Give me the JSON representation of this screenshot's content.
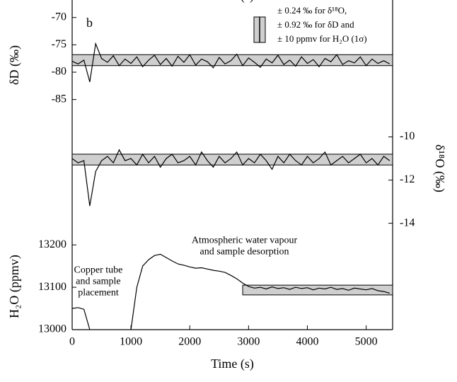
{
  "chart_data": [
    {
      "type": "line",
      "title_top": "Time (s)",
      "panel_label": "b",
      "ylabel": "δD (‰)",
      "yaxis_side": "left",
      "xlim": [
        0,
        5450
      ],
      "ylim": [
        -87.5,
        -66.8
      ],
      "yticks": [
        -70,
        -75,
        -80,
        -85
      ],
      "band": {
        "xlim": [
          0,
          5450
        ],
        "ylim": [
          -78.8,
          -76.8
        ],
        "color": "#cfcfcf"
      },
      "legend_lines": [
        "± 0.24 ‰ for δ¹⁸O,",
        "± 0.92 ‰ for δD and",
        "± 10 ppmv for H₂O (1σ)"
      ],
      "series": [
        {
          "color": "#000000",
          "x": [
            0,
            100,
            200,
            300,
            400,
            500,
            600,
            700,
            800,
            900,
            1000,
            1100,
            1200,
            1300,
            1400,
            1500,
            1600,
            1700,
            1800,
            1900,
            2000,
            2100,
            2200,
            2300,
            2400,
            2500,
            2600,
            2700,
            2800,
            2900,
            3000,
            3100,
            3200,
            3300,
            3400,
            3500,
            3600,
            3700,
            3800,
            3900,
            4000,
            4100,
            4200,
            4300,
            4400,
            4500,
            4600,
            4700,
            4800,
            4900,
            5000,
            5100,
            5200,
            5300,
            5400
          ],
          "values": [
            -78,
            -78.5,
            -77.8,
            -81.8,
            -74.8,
            -77.5,
            -78.2,
            -77,
            -78.8,
            -77.6,
            -78.4,
            -77.2,
            -79,
            -77.8,
            -76.9,
            -78.6,
            -77.5,
            -78.9,
            -77.1,
            -78.2,
            -76.8,
            -78.7,
            -77.6,
            -78.1,
            -79.2,
            -77.3,
            -78.5,
            -77.9,
            -76.7,
            -78.8,
            -77.4,
            -78.2,
            -79.1,
            -77.6,
            -78.3,
            -76.9,
            -78.6,
            -77.8,
            -78.9,
            -77.2,
            -78.4,
            -77.7,
            -79,
            -77.5,
            -78.1,
            -76.8,
            -78.6,
            -77.9,
            -78.3,
            -77.2,
            -78.8,
            -77.6,
            -78.4,
            -77.9,
            -78.5
          ]
        }
      ]
    },
    {
      "type": "line",
      "ylabel": "δ¹⁸O (‰)",
      "yaxis_side": "right",
      "xlim": [
        0,
        5450
      ],
      "ylim": [
        -14.8,
        -8.9
      ],
      "yticks": [
        -10,
        -12,
        -14
      ],
      "band": {
        "xlim": [
          0,
          5450
        ],
        "ylim": [
          -11.3,
          -10.8
        ],
        "color": "#cfcfcf"
      },
      "series": [
        {
          "color": "#000000",
          "x": [
            0,
            100,
            200,
            300,
            400,
            500,
            600,
            700,
            800,
            900,
            1000,
            1100,
            1200,
            1300,
            1400,
            1500,
            1600,
            1700,
            1800,
            1900,
            2000,
            2100,
            2200,
            2300,
            2400,
            2500,
            2600,
            2700,
            2800,
            2900,
            3000,
            3100,
            3200,
            3300,
            3400,
            3500,
            3600,
            3700,
            3800,
            3900,
            4000,
            4100,
            4200,
            4300,
            4400,
            4500,
            4600,
            4700,
            4800,
            4900,
            5000,
            5100,
            5200,
            5300,
            5400
          ],
          "values": [
            -11,
            -11.2,
            -11.1,
            -13.2,
            -11.6,
            -11.1,
            -10.9,
            -11.2,
            -10.6,
            -11.1,
            -11,
            -11.3,
            -10.8,
            -11.2,
            -10.9,
            -11.4,
            -11,
            -10.8,
            -11.2,
            -11.1,
            -10.9,
            -11.3,
            -10.7,
            -11.1,
            -11.4,
            -10.9,
            -11.2,
            -11,
            -10.7,
            -11.3,
            -11,
            -11.2,
            -10.8,
            -11.1,
            -11.5,
            -10.9,
            -11.2,
            -10.8,
            -11.1,
            -11.3,
            -10.9,
            -11.2,
            -11,
            -10.7,
            -11.3,
            -11.1,
            -10.9,
            -11.2,
            -11,
            -10.8,
            -11.2,
            -11,
            -11.3,
            -10.9,
            -11.1
          ]
        }
      ]
    },
    {
      "type": "line",
      "ylabel": "H₂O (ppmv)",
      "xlabel": "Time (s)",
      "yaxis_side": "left",
      "xlim": [
        0,
        5450
      ],
      "xticks": [
        0,
        1000,
        2000,
        3000,
        4000,
        5000
      ],
      "ylim": [
        13000,
        13227
      ],
      "yticks": [
        13200,
        13100,
        13000
      ],
      "band": {
        "xlim": [
          2900,
          5450
        ],
        "ylim": [
          13082,
          13105
        ],
        "color": "#cfcfcf"
      },
      "annotations": [
        {
          "lines": [
            "Copper tube",
            "and sample",
            "placement"
          ],
          "x": 950,
          "y": 13140
        },
        {
          "lines": [
            "Atmospheric water vapour",
            "and sample desorption"
          ],
          "x": 2930,
          "y": 13210
        }
      ],
      "series": [
        {
          "color": "#000000",
          "x": [
            0,
            100,
            200,
            300,
            400,
            500,
            600,
            700,
            800,
            900,
            1000,
            1100,
            1200,
            1300,
            1400,
            1500,
            1600,
            1700,
            1800,
            1900,
            2000,
            2100,
            2200,
            2300,
            2400,
            2500,
            2600,
            2700,
            2800,
            2900,
            3000,
            3100,
            3200,
            3300,
            3400,
            3500,
            3600,
            3700,
            3800,
            3900,
            4000,
            4100,
            4200,
            4300,
            4400,
            4500,
            4600,
            4700,
            4800,
            4900,
            5000,
            5100,
            5200,
            5300,
            5400
          ],
          "values": [
            13050,
            13052,
            13048,
            13000,
            null,
            null,
            null,
            null,
            null,
            null,
            13000,
            13100,
            13150,
            13165,
            13175,
            13178,
            13170,
            13162,
            13155,
            13152,
            13148,
            13145,
            13146,
            13143,
            13140,
            13138,
            13135,
            13128,
            13120,
            13110,
            13102,
            13098,
            13100,
            13096,
            13101,
            13097,
            13099,
            13095,
            13100,
            13097,
            13099,
            13094,
            13098,
            13096,
            13100,
            13095,
            13097,
            13093,
            13098,
            13096,
            13094,
            13097,
            13092,
            13090,
            13086
          ]
        }
      ]
    }
  ]
}
